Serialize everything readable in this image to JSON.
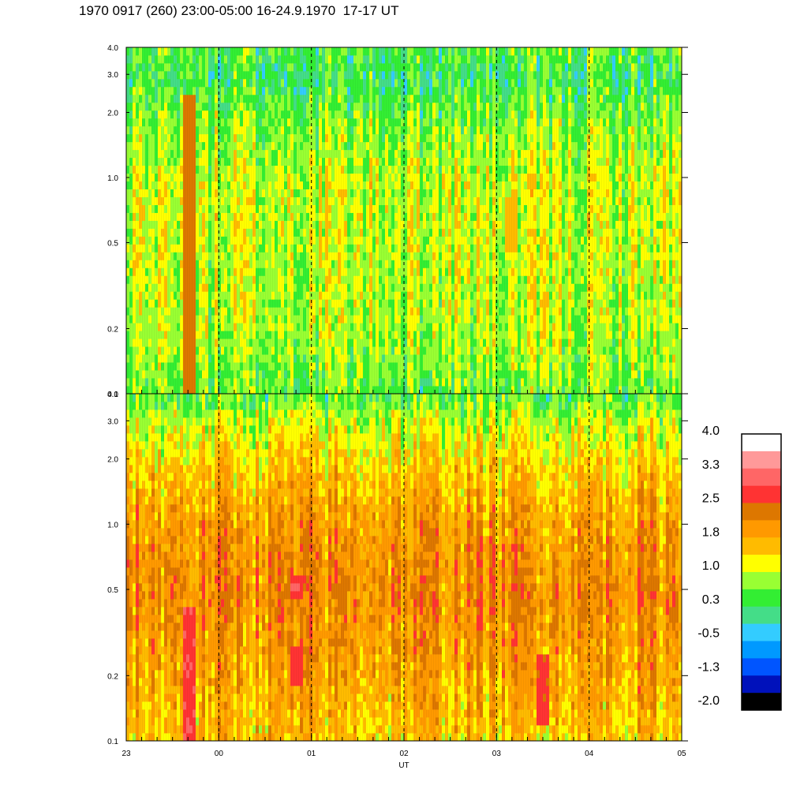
{
  "title": "1970 0917 (260) 23:00-05:00 16-24.9.1970  17-17 UT",
  "colors": {
    "background": "#ffffff",
    "axis": "#000000",
    "gridline": "#000000"
  },
  "chart_data": [
    {
      "type": "heatmap",
      "panel": "upper",
      "x_axis": {
        "range": [
          "23",
          "05"
        ],
        "ticks": [
          "23",
          "00",
          "01",
          "02",
          "03",
          "04",
          "05"
        ],
        "label": "",
        "tick_labels_shown": false
      },
      "y_axis": {
        "scale": "log",
        "range": [
          0.1,
          4.0
        ],
        "ticks": [
          "0.1",
          "0.2",
          "0.5",
          "1.0",
          "2.0",
          "3.0",
          "4.0"
        ]
      },
      "dashed_hour_lines": [
        "00",
        "01",
        "02",
        "03",
        "04"
      ],
      "profile": [
        {
          "y": 4.0,
          "value": 0.5
        },
        {
          "y": 3.0,
          "value": 0.3
        },
        {
          "y": 2.0,
          "value": 0.6
        },
        {
          "y": 1.0,
          "value": 1.0
        },
        {
          "y": 0.5,
          "value": 1.0
        },
        {
          "y": 0.2,
          "value": 0.9
        },
        {
          "y": 0.1,
          "value": 0.6
        }
      ],
      "highlights": [
        {
          "x_hours": 0.68,
          "y_from": 0.1,
          "y_to": 2.5,
          "value": 2.3,
          "note": ""
        },
        {
          "x_hours": 4.15,
          "y_from": 0.45,
          "y_to": 0.8,
          "value": 1.6
        }
      ]
    },
    {
      "type": "heatmap",
      "panel": "lower",
      "x_axis": {
        "range": [
          "23",
          "05"
        ],
        "ticks": [
          "23",
          "00",
          "01",
          "02",
          "03",
          "04",
          "05"
        ],
        "label": "UT"
      },
      "y_axis": {
        "scale": "log",
        "range": [
          0.1,
          4.0
        ],
        "ticks": [
          "0.1",
          "0.2",
          "0.5",
          "1.0",
          "2.0",
          "3.0",
          "4.0"
        ]
      },
      "dashed_hour_lines": [
        "00",
        "01",
        "02",
        "03",
        "04"
      ],
      "profile": [
        {
          "y": 4.0,
          "value": 0.5
        },
        {
          "y": 3.0,
          "value": 1.0
        },
        {
          "y": 2.0,
          "value": 1.4
        },
        {
          "y": 1.0,
          "value": 1.9
        },
        {
          "y": 0.5,
          "value": 2.1
        },
        {
          "y": 0.2,
          "value": 1.8
        },
        {
          "y": 0.1,
          "value": 1.5
        }
      ],
      "highlights": [
        {
          "x_hours": 0.68,
          "y_from": 0.1,
          "y_to": 0.4,
          "value": 2.8
        },
        {
          "x_hours": 1.85,
          "y_from": 0.45,
          "y_to": 0.6,
          "value": 2.8
        },
        {
          "x_hours": 1.85,
          "y_from": 0.18,
          "y_to": 0.28,
          "value": 2.7
        },
        {
          "x_hours": 4.5,
          "y_from": 0.12,
          "y_to": 0.25,
          "value": 2.6
        }
      ]
    }
  ],
  "colorbar": {
    "labels": [
      "4.0",
      "3.3",
      "2.5",
      "1.8",
      "1.0",
      "0.3",
      "-0.5",
      "-1.3",
      "-2.0"
    ],
    "min": -2.0,
    "max": 4.0,
    "colors_top_to_bottom": [
      "#ffffff",
      "#ff9999",
      "#ff6666",
      "#ff3333",
      "#dd7700",
      "#ff9900",
      "#ffbb00",
      "#ffff00",
      "#99ff33",
      "#33ee33",
      "#44dd88",
      "#33ccff",
      "#0099ff",
      "#0055ff",
      "#0011bb",
      "#000000"
    ]
  }
}
